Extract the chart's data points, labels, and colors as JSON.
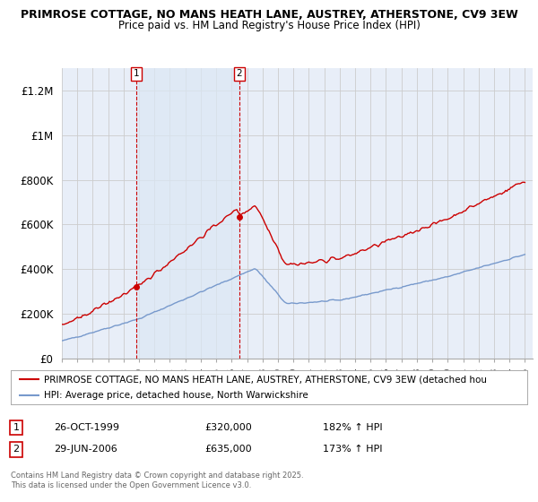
{
  "title1": "PRIMROSE COTTAGE, NO MANS HEATH LANE, AUSTREY, ATHERSTONE, CV9 3EW",
  "title2": "Price paid vs. HM Land Registry's House Price Index (HPI)",
  "background_color": "#ffffff",
  "plot_bg_color": "#e8eef8",
  "grid_color": "#cccccc",
  "red_color": "#cc0000",
  "blue_color": "#7799cc",
  "purchase1_year": 1999.833,
  "purchase1_price": 320000,
  "purchase2_year": 2006.5,
  "purchase2_price": 635000,
  "legend_line1": "PRIMROSE COTTAGE, NO MANS HEATH LANE, AUSTREY, ATHERSTONE, CV9 3EW (detached hou",
  "legend_line2": "HPI: Average price, detached house, North Warwickshire",
  "annotation1_date": "26-OCT-1999",
  "annotation1_price": "£320,000",
  "annotation1_hpi": "182% ↑ HPI",
  "annotation2_date": "29-JUN-2006",
  "annotation2_price": "£635,000",
  "annotation2_hpi": "173% ↑ HPI",
  "footer": "Contains HM Land Registry data © Crown copyright and database right 2025.\nThis data is licensed under the Open Government Licence v3.0.",
  "ylim": [
    0,
    1300000
  ],
  "yticks": [
    0,
    200000,
    400000,
    600000,
    800000,
    1000000,
    1200000
  ],
  "ytick_labels": [
    "£0",
    "£200K",
    "£400K",
    "£600K",
    "£800K",
    "£1M",
    "£1.2M"
  ],
  "xlim": [
    1995,
    2025.5
  ],
  "xticks": [
    1995,
    1996,
    1997,
    1998,
    1999,
    2000,
    2001,
    2002,
    2003,
    2004,
    2005,
    2006,
    2007,
    2008,
    2009,
    2010,
    2011,
    2012,
    2013,
    2014,
    2015,
    2016,
    2017,
    2018,
    2019,
    2020,
    2021,
    2022,
    2023,
    2024,
    2025
  ]
}
